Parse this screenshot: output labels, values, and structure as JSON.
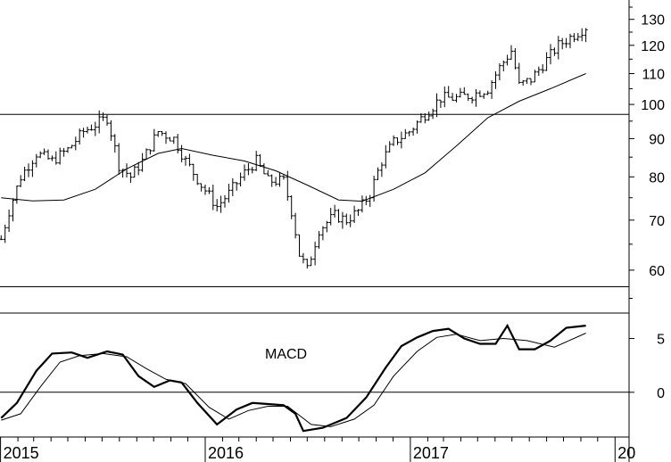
{
  "chart_data": [
    {
      "type": "ohlc",
      "y_scale": "log",
      "ylim": [
        53,
        138
      ],
      "y_ticks": [
        60,
        70,
        80,
        90,
        100,
        110,
        120,
        130
      ],
      "y_tick_labels": [
        "60",
        "70",
        "80",
        "90",
        "100",
        "110",
        "120",
        "130"
      ],
      "x_ticks": [
        "2015-01-01",
        "2016-01-01",
        "2017-01-01",
        "2018-01-01"
      ],
      "x_tick_labels": [
        "2015",
        "2016",
        "2017",
        "20"
      ],
      "xlim": [
        "2014-12-31",
        "2018-01-26"
      ],
      "horizontal_lines": [
        97,
        57
      ],
      "grid": false,
      "series": [
        {
          "kind": "price",
          "anchors": [
            [
              "2015-01-02",
              66
            ],
            [
              "2015-01-16",
              72
            ],
            [
              "2015-02-06",
              80
            ],
            [
              "2015-03-06",
              86
            ],
            [
              "2015-04-03",
              84
            ],
            [
              "2015-05-01",
              87
            ],
            [
              "2015-05-29",
              92
            ],
            [
              "2015-06-19",
              94
            ],
            [
              "2015-07-10",
              96
            ],
            [
              "2015-07-31",
              83
            ],
            [
              "2015-08-21",
              80
            ],
            [
              "2015-09-11",
              84
            ],
            [
              "2015-10-09",
              92
            ],
            [
              "2015-11-06",
              90
            ],
            [
              "2015-11-27",
              84
            ],
            [
              "2015-12-25",
              78
            ],
            [
              "2016-01-22",
              73
            ],
            [
              "2016-02-12",
              76
            ],
            [
              "2016-03-11",
              81
            ],
            [
              "2016-04-01",
              84
            ],
            [
              "2016-04-22",
              79
            ],
            [
              "2016-05-20",
              79
            ],
            [
              "2016-06-03",
              72
            ],
            [
              "2016-06-17",
              63
            ],
            [
              "2016-07-01",
              60
            ],
            [
              "2016-07-22",
              68
            ],
            [
              "2016-08-19",
              71
            ],
            [
              "2016-09-09",
              70
            ],
            [
              "2016-09-30",
              72
            ],
            [
              "2016-10-21",
              76
            ],
            [
              "2016-11-11",
              84
            ],
            [
              "2016-12-02",
              89
            ],
            [
              "2016-12-30",
              92
            ],
            [
              "2017-01-27",
              97
            ],
            [
              "2017-02-24",
              102
            ],
            [
              "2017-03-24",
              102
            ],
            [
              "2017-04-21",
              103
            ],
            [
              "2017-05-19",
              105
            ],
            [
              "2017-06-09",
              112
            ],
            [
              "2017-06-30",
              118
            ],
            [
              "2017-07-14",
              106
            ],
            [
              "2017-08-04",
              108
            ],
            [
              "2017-08-25",
              113
            ],
            [
              "2017-09-22",
              120
            ],
            [
              "2017-10-20",
              124
            ],
            [
              "2017-11-10",
              127
            ]
          ]
        },
        {
          "kind": "moving-average",
          "points": [
            [
              "2015-01-02",
              75
            ],
            [
              "2015-02-27",
              74.3
            ],
            [
              "2015-04-24",
              74.5
            ],
            [
              "2015-06-19",
              77
            ],
            [
              "2015-08-14",
              82
            ],
            [
              "2015-10-09",
              86
            ],
            [
              "2015-11-20",
              87.3
            ],
            [
              "2016-01-15",
              85.5
            ],
            [
              "2016-03-11",
              84
            ],
            [
              "2016-05-06",
              81.5
            ],
            [
              "2016-07-01",
              78
            ],
            [
              "2016-08-26",
              74.5
            ],
            [
              "2016-10-07",
              74.2
            ],
            [
              "2016-12-02",
              77
            ],
            [
              "2017-01-27",
              81
            ],
            [
              "2017-03-24",
              88
            ],
            [
              "2017-05-19",
              96
            ],
            [
              "2017-07-14",
              101
            ],
            [
              "2017-09-08",
              105
            ],
            [
              "2017-11-10",
              110
            ]
          ]
        }
      ]
    },
    {
      "type": "line",
      "ylim": [
        -4,
        7.2
      ],
      "y_ticks": [
        0,
        5
      ],
      "y_tick_labels": [
        "0",
        "5"
      ],
      "annotation": "MACD",
      "horizontal_lines": [
        0
      ],
      "series": [
        {
          "kind": "macd",
          "points": [
            [
              "2015-01-02",
              -2.4
            ],
            [
              "2015-01-30",
              -1
            ],
            [
              "2015-03-06",
              2
            ],
            [
              "2015-04-03",
              3.6
            ],
            [
              "2015-05-08",
              3.7
            ],
            [
              "2015-06-05",
              3.2
            ],
            [
              "2015-07-10",
              3.8
            ],
            [
              "2015-08-07",
              3.5
            ],
            [
              "2015-09-04",
              1.5
            ],
            [
              "2015-10-02",
              0.5
            ],
            [
              "2015-10-30",
              1.1
            ],
            [
              "2015-11-20",
              0.9
            ],
            [
              "2015-12-18",
              -1
            ],
            [
              "2016-01-22",
              -3
            ],
            [
              "2016-02-26",
              -1.6
            ],
            [
              "2016-03-25",
              -1
            ],
            [
              "2016-04-22",
              -1.1
            ],
            [
              "2016-05-20",
              -1.2
            ],
            [
              "2016-06-10",
              -2
            ],
            [
              "2016-06-24",
              -3.6
            ],
            [
              "2016-07-29",
              -3.3
            ],
            [
              "2016-09-09",
              -2.4
            ],
            [
              "2016-10-14",
              -0.5
            ],
            [
              "2016-11-18",
              2.3
            ],
            [
              "2016-12-16",
              4.3
            ],
            [
              "2017-01-13",
              5.1
            ],
            [
              "2017-02-10",
              5.7
            ],
            [
              "2017-03-10",
              5.9
            ],
            [
              "2017-04-07",
              5
            ],
            [
              "2017-05-05",
              4.5
            ],
            [
              "2017-06-02",
              4.5
            ],
            [
              "2017-06-23",
              6.2
            ],
            [
              "2017-07-14",
              4
            ],
            [
              "2017-08-11",
              4
            ],
            [
              "2017-09-08",
              4.8
            ],
            [
              "2017-10-06",
              6
            ],
            [
              "2017-11-10",
              6.2
            ]
          ]
        },
        {
          "kind": "signal",
          "points": [
            [
              "2015-01-02",
              -2.6
            ],
            [
              "2015-02-06",
              -2
            ],
            [
              "2015-03-13",
              0.5
            ],
            [
              "2015-04-17",
              2.8
            ],
            [
              "2015-05-22",
              3.4
            ],
            [
              "2015-07-03",
              3.6
            ],
            [
              "2015-08-14",
              3.3
            ],
            [
              "2015-09-18",
              2.2
            ],
            [
              "2015-10-23",
              1.2
            ],
            [
              "2015-11-27",
              0.8
            ],
            [
              "2016-01-08",
              -1.4
            ],
            [
              "2016-02-12",
              -2.5
            ],
            [
              "2016-03-18",
              -1.7
            ],
            [
              "2016-04-22",
              -1.3
            ],
            [
              "2016-05-27",
              -1.3
            ],
            [
              "2016-07-08",
              -3
            ],
            [
              "2016-08-12",
              -3.2
            ],
            [
              "2016-09-23",
              -2.5
            ],
            [
              "2016-10-28",
              -1.2
            ],
            [
              "2016-12-02",
              1.5
            ],
            [
              "2017-01-13",
              3.8
            ],
            [
              "2017-02-17",
              5.1
            ],
            [
              "2017-03-24",
              5.4
            ],
            [
              "2017-05-05",
              4.8
            ],
            [
              "2017-06-16",
              5
            ],
            [
              "2017-07-28",
              4.8
            ],
            [
              "2017-09-15",
              4.2
            ],
            [
              "2017-11-10",
              5.5
            ]
          ]
        }
      ]
    }
  ]
}
